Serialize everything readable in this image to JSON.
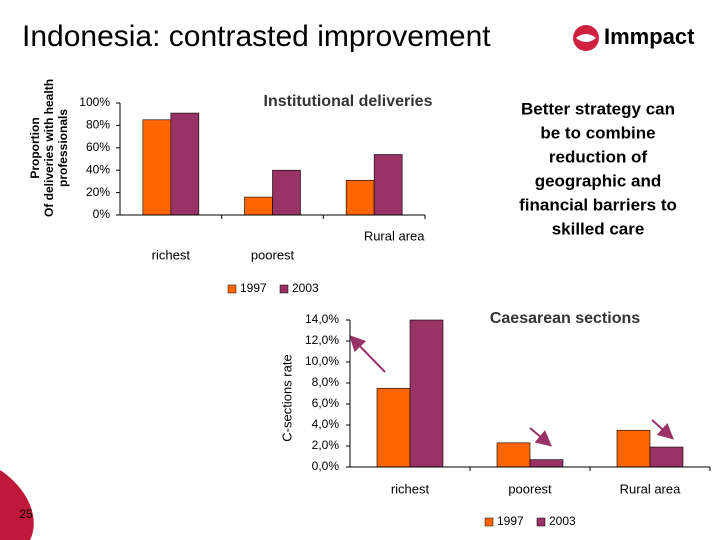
{
  "slide": {
    "title": "Indonesia: contrasted improvement",
    "logo": "Immpact",
    "note": [
      "Better strategy can",
      "be to combine",
      "reduction of",
      "geographic and",
      "financial barriers to",
      "skilled care"
    ],
    "page_number": "25"
  },
  "chart_data": [
    {
      "type": "bar",
      "title": "Institutional deliveries",
      "y_label": [
        "Proportion",
        "Of deliveries with health",
        "professionals"
      ],
      "categories": [
        "richest",
        "poorest",
        "Rural area"
      ],
      "series": [
        {
          "name": "1997",
          "color": "#ff6600",
          "values": [
            85,
            16,
            31
          ]
        },
        {
          "name": "2003",
          "color": "#993366",
          "values": [
            91,
            40,
            54
          ]
        }
      ],
      "ylim": [
        0,
        100
      ],
      "yticks": [
        {
          "value": 0,
          "label": "0%"
        },
        {
          "value": 20,
          "label": "20%"
        },
        {
          "value": 40,
          "label": "40%"
        },
        {
          "value": 60,
          "label": "60%"
        },
        {
          "value": 80,
          "label": "80%"
        },
        {
          "value": 100,
          "label": "100%"
        }
      ],
      "legend": "bottom"
    },
    {
      "type": "bar",
      "title": "Caesarean sections",
      "y_label": [
        "C-sections rate"
      ],
      "categories": [
        "richest",
        "poorest",
        "Rural area"
      ],
      "series": [
        {
          "name": "1997",
          "color": "#ff6600",
          "values": [
            7.5,
            2.3,
            3.5
          ]
        },
        {
          "name": "2003",
          "color": "#993366",
          "values": [
            14.0,
            0.7,
            1.9
          ]
        }
      ],
      "ylim": [
        0,
        14
      ],
      "yticks": [
        {
          "value": 0,
          "label": "0,0%"
        },
        {
          "value": 2,
          "label": "2,0%"
        },
        {
          "value": 4,
          "label": "4,0%"
        },
        {
          "value": 6,
          "label": "6,0%"
        },
        {
          "value": 8,
          "label": "8,0%"
        },
        {
          "value": 10,
          "label": "10,0%"
        },
        {
          "value": 12,
          "label": "12,0%"
        },
        {
          "value": 14,
          "label": "14,0%"
        }
      ],
      "legend": "bottom"
    }
  ]
}
